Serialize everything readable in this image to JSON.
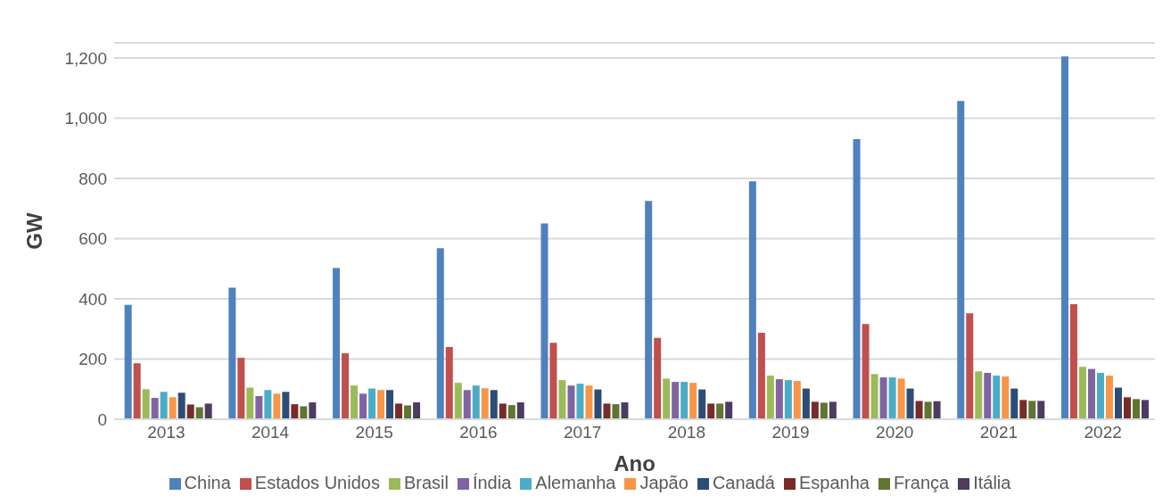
{
  "chart_data": {
    "type": "bar",
    "xlabel": "Ano",
    "ylabel": "GW",
    "categories": [
      "2013",
      "2014",
      "2015",
      "2016",
      "2017",
      "2018",
      "2019",
      "2020",
      "2021",
      "2022"
    ],
    "series": [
      {
        "name": "China",
        "color": "#4f81bd",
        "values": [
          380,
          437,
          502,
          568,
          650,
          725,
          790,
          930,
          1057,
          1205
        ]
      },
      {
        "name": "Estados Unidos",
        "color": "#c0504d",
        "values": [
          186,
          204,
          219,
          240,
          254,
          270,
          287,
          316,
          352,
          382
        ]
      },
      {
        "name": "Brasil",
        "color": "#9bbb59",
        "values": [
          100,
          105,
          112,
          121,
          130,
          135,
          145,
          150,
          159,
          174
        ]
      },
      {
        "name": "Índia",
        "color": "#8064a2",
        "values": [
          71,
          77,
          85,
          97,
          112,
          124,
          133,
          139,
          154,
          167
        ]
      },
      {
        "name": "Alemanha",
        "color": "#4bacc6",
        "values": [
          91,
          97,
          102,
          112,
          118,
          124,
          130,
          139,
          145,
          154
        ]
      },
      {
        "name": "Japão",
        "color": "#f79646",
        "values": [
          73,
          85,
          97,
          103,
          112,
          121,
          127,
          135,
          142,
          145
        ]
      },
      {
        "name": "Canadá",
        "color": "#2c4d75",
        "values": [
          88,
          91,
          97,
          97,
          99,
          99,
          102,
          102,
          102,
          105
        ]
      },
      {
        "name": "Espanha",
        "color": "#772c2a",
        "values": [
          49,
          50,
          52,
          52,
          52,
          52,
          58,
          61,
          64,
          73
        ]
      },
      {
        "name": "França",
        "color": "#5f7530",
        "values": [
          40,
          43,
          46,
          47,
          50,
          52,
          55,
          58,
          61,
          67
        ]
      },
      {
        "name": "Itália",
        "color": "#4d3b62",
        "values": [
          52,
          56,
          56,
          56,
          56,
          58,
          58,
          60,
          61,
          64
        ]
      }
    ],
    "ylim": [
      0,
      1250
    ],
    "yticks": [
      0,
      200,
      400,
      600,
      800,
      {
        "value": 1000,
        "label": "1,000"
      },
      {
        "value": 1200,
        "label": "1,200"
      }
    ],
    "grid": "y",
    "legend": "bottom"
  }
}
